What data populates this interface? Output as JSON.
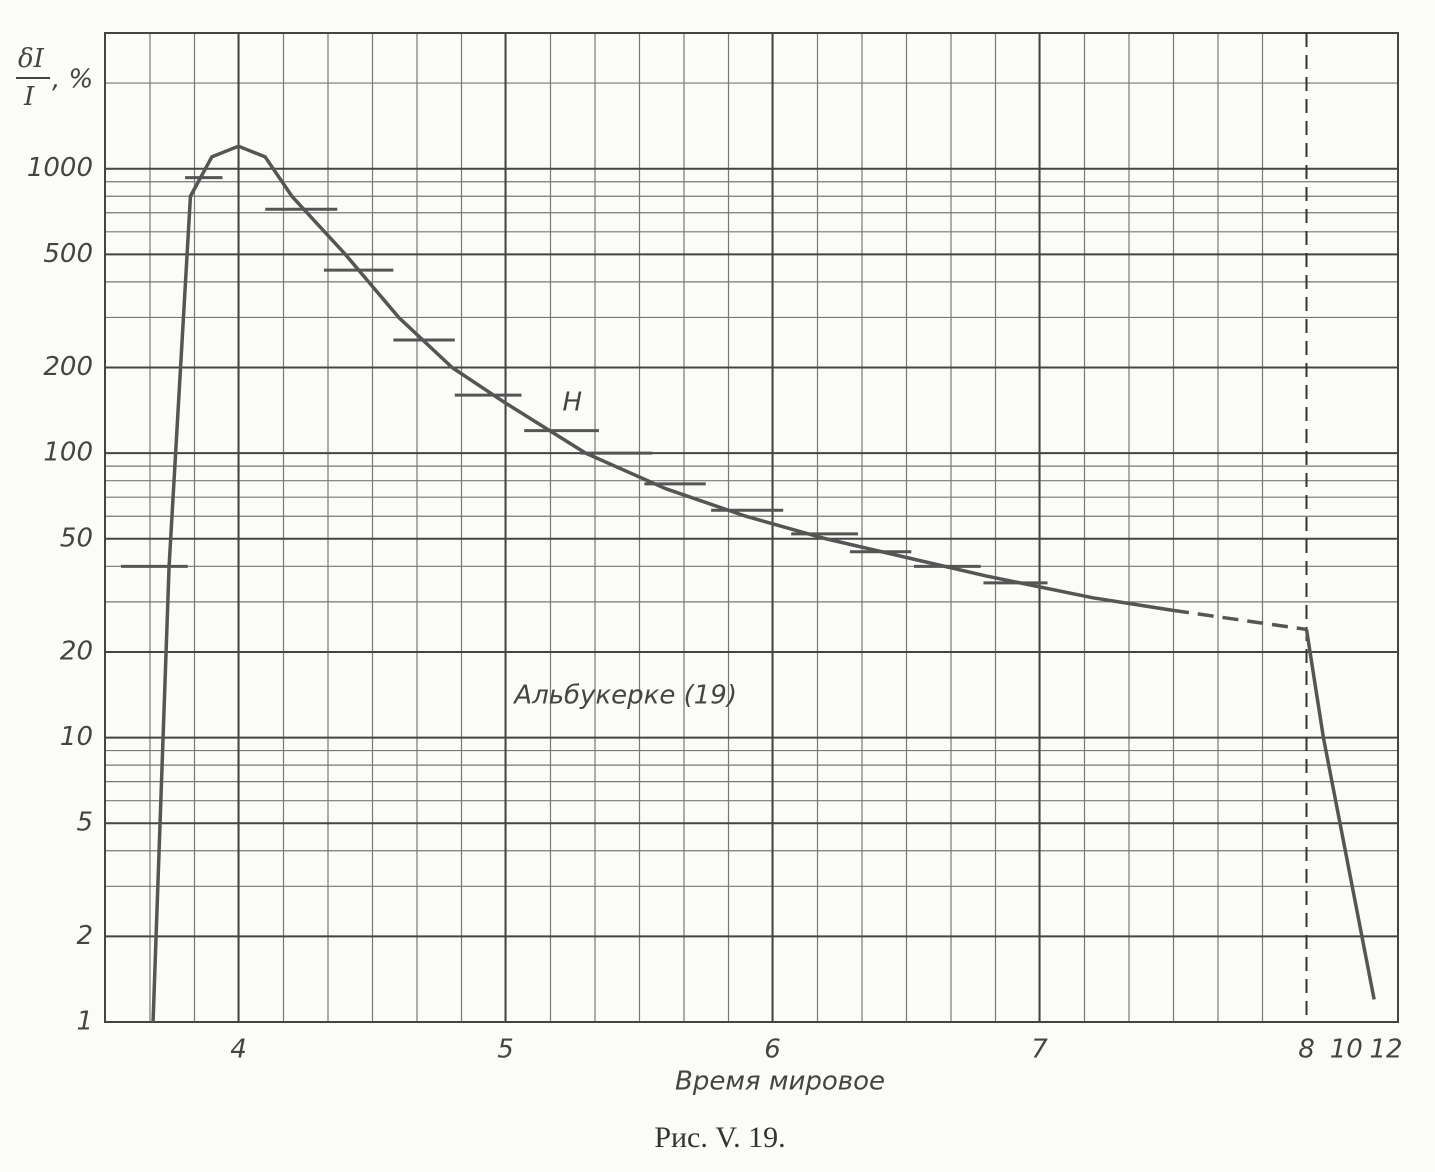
{
  "chart_data": {
    "type": "line",
    "title": "Рис. V. 19.",
    "x_label": "Время мировое",
    "y_label": {
      "numerator": "δI",
      "denominator": "I",
      "unit": ", %"
    },
    "log_y": true,
    "grid": true,
    "xlim": [
      3.5,
      12.6
    ],
    "x_break": 8,
    "xticks": [
      4,
      5,
      6,
      7,
      8,
      10,
      12
    ],
    "ylim": [
      1,
      3000
    ],
    "yticks": [
      1,
      2,
      5,
      10,
      20,
      50,
      100,
      200,
      500,
      1000
    ],
    "series": [
      {
        "color": "#555555",
        "dashed": false,
        "x": [
          3.68,
          3.74,
          3.82,
          3.9,
          4.0,
          4.1,
          4.2,
          4.4,
          4.6,
          4.8,
          5.0,
          5.3,
          5.6,
          5.9,
          6.2,
          6.5,
          6.8,
          7.2,
          7.5
        ],
        "values": [
          1,
          40,
          800,
          1100,
          1200,
          1100,
          800,
          500,
          300,
          200,
          150,
          100,
          75,
          60,
          50,
          43,
          37,
          31,
          28
        ]
      },
      {
        "color": "#555555",
        "dashed": true,
        "x": [
          7.5,
          8.0
        ],
        "values": [
          28,
          24
        ]
      },
      {
        "color": "#555555",
        "dashed": false,
        "x": [
          8.0,
          8.85,
          11.4
        ],
        "values": [
          24,
          10,
          1.2
        ]
      }
    ],
    "intervals": [
      {
        "x0": 3.56,
        "x1": 3.81,
        "value": 40
      },
      {
        "x0": 3.8,
        "x1": 3.94,
        "value": 930
      },
      {
        "x0": 4.1,
        "x1": 4.37,
        "value": 720
      },
      {
        "x0": 4.32,
        "x1": 4.58,
        "value": 440
      },
      {
        "x0": 4.58,
        "x1": 4.81,
        "value": 250
      },
      {
        "x0": 4.81,
        "x1": 5.06,
        "value": 160
      },
      {
        "x0": 5.07,
        "x1": 5.35,
        "value": 120
      },
      {
        "x0": 5.28,
        "x1": 5.55,
        "value": 100
      },
      {
        "x0": 5.52,
        "x1": 5.75,
        "value": 78
      },
      {
        "x0": 5.77,
        "x1": 6.04,
        "value": 63
      },
      {
        "x0": 6.07,
        "x1": 6.32,
        "value": 52
      },
      {
        "x0": 6.29,
        "x1": 6.52,
        "value": 45
      },
      {
        "x0": 6.53,
        "x1": 6.78,
        "value": 40
      },
      {
        "x0": 6.79,
        "x1": 7.03,
        "value": 35
      }
    ],
    "annotations": [
      {
        "text": "H",
        "x": 5.25,
        "y": 150
      },
      {
        "text": "Альбукерке (19)",
        "x": 5.45,
        "y": 14
      }
    ]
  }
}
